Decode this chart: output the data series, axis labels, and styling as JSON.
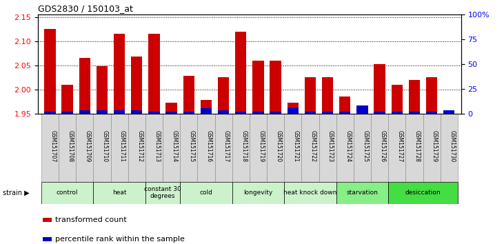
{
  "title": "GDS2830 / 150103_at",
  "samples": [
    "GSM151707",
    "GSM151708",
    "GSM151709",
    "GSM151710",
    "GSM151711",
    "GSM151712",
    "GSM151713",
    "GSM151714",
    "GSM151715",
    "GSM151716",
    "GSM151717",
    "GSM151718",
    "GSM151719",
    "GSM151720",
    "GSM151721",
    "GSM151722",
    "GSM151723",
    "GSM151724",
    "GSM151725",
    "GSM151726",
    "GSM151727",
    "GSM151728",
    "GSM151729",
    "GSM151730"
  ],
  "red_values": [
    2.125,
    2.01,
    2.065,
    2.048,
    2.115,
    2.068,
    2.115,
    1.972,
    2.028,
    1.978,
    2.025,
    2.12,
    2.06,
    2.06,
    1.972,
    2.025,
    2.025,
    1.985,
    1.957,
    2.052,
    2.01,
    2.02,
    2.025,
    1.957
  ],
  "blue_values": [
    2,
    2,
    3,
    3,
    3,
    3,
    2,
    2,
    2,
    5,
    3,
    2,
    2,
    2,
    6,
    2,
    2,
    2,
    8,
    2,
    2,
    2,
    2,
    3
  ],
  "groups": [
    {
      "label": "control",
      "start": 0,
      "end": 2,
      "color": "#ccf2cc"
    },
    {
      "label": "heat",
      "start": 3,
      "end": 5,
      "color": "#ccf2cc"
    },
    {
      "label": "constant 30\ndegrees",
      "start": 6,
      "end": 7,
      "color": "#ccf2cc"
    },
    {
      "label": "cold",
      "start": 8,
      "end": 10,
      "color": "#ccf2cc"
    },
    {
      "label": "longevity",
      "start": 11,
      "end": 13,
      "color": "#ccf2cc"
    },
    {
      "label": "heat knock down",
      "start": 14,
      "end": 16,
      "color": "#ccf2cc"
    },
    {
      "label": "starvation",
      "start": 17,
      "end": 19,
      "color": "#88ee88"
    },
    {
      "label": "desiccation",
      "start": 20,
      "end": 23,
      "color": "#44dd44"
    }
  ],
  "ylim_left": [
    1.95,
    2.155
  ],
  "ylim_right": [
    0,
    100
  ],
  "yticks_left": [
    1.95,
    2.0,
    2.05,
    2.1,
    2.15
  ],
  "yticks_right": [
    0,
    25,
    50,
    75,
    100
  ],
  "bar_color_red": "#cc0000",
  "bar_color_blue": "#0000cc",
  "bar_width": 0.65,
  "baseline": 1.95
}
